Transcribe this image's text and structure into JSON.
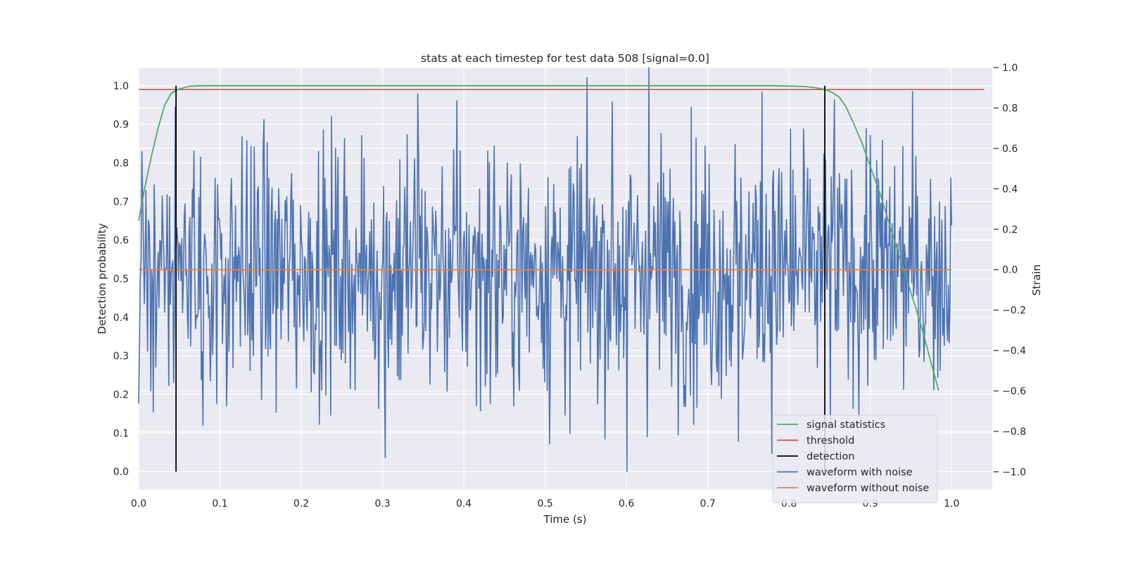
{
  "chart_data": {
    "type": "line",
    "title": "stats at each timestep for test data 508 [signal=0.0]",
    "xlabel": "Time (s)",
    "ylabel": "Detection probability",
    "ylabel_right": "Strain",
    "xlim": [
      0.0,
      1.05
    ],
    "ylim": [
      -0.047,
      1.047
    ],
    "ylim_right": [
      -1.089,
      1.0
    ],
    "x_ticks": [
      "0.0",
      "0.1",
      "0.2",
      "0.3",
      "0.4",
      "0.5",
      "0.6",
      "0.7",
      "0.8",
      "0.9",
      "1.0"
    ],
    "y_ticks": [
      "0.0",
      "0.1",
      "0.2",
      "0.3",
      "0.4",
      "0.5",
      "0.6",
      "0.7",
      "0.8",
      "0.9",
      "1.0"
    ],
    "y_right_ticks": [
      "−1.0",
      "−0.8",
      "−0.6",
      "−0.4",
      "−0.2",
      "0.0",
      "0.2",
      "0.4",
      "0.6",
      "0.8",
      "1.0"
    ],
    "grid": true,
    "legend_position": "lower-right",
    "colors": {
      "background": "#eaeaf2",
      "grid": "#ffffff",
      "signal_statistics": "#55a868",
      "threshold": "#c44e52",
      "detection": "#000000",
      "waveform_with_noise": "#4c72b0",
      "waveform_without_noise": "#dd8452"
    },
    "legend": [
      {
        "label": "signal statistics",
        "color": "#55a868"
      },
      {
        "label": "threshold",
        "color": "#c44e52"
      },
      {
        "label": "detection",
        "color": "#000000"
      },
      {
        "label": "waveform with noise",
        "color": "#4c72b0"
      },
      {
        "label": "waveform without noise",
        "color": "#dd8452"
      }
    ],
    "series": [
      {
        "name": "signal statistics",
        "axis": "left",
        "x": [
          0.0,
          0.008,
          0.016,
          0.024,
          0.032,
          0.04,
          0.048,
          0.056,
          0.064,
          0.08,
          0.12,
          0.3,
          0.5,
          0.7,
          0.78,
          0.8,
          0.82,
          0.835,
          0.845,
          0.855,
          0.862,
          0.87,
          0.88,
          0.89,
          0.9,
          0.912,
          0.925,
          0.94,
          0.955,
          0.965,
          0.975,
          0.984
        ],
        "y": [
          0.65,
          0.74,
          0.82,
          0.89,
          0.95,
          0.98,
          0.99,
          0.995,
          0.999,
          1.0,
          1.0,
          1.0,
          1.0,
          1.0,
          1.0,
          0.999,
          0.998,
          0.994,
          0.99,
          0.98,
          0.97,
          0.945,
          0.9,
          0.85,
          0.79,
          0.72,
          0.63,
          0.53,
          0.43,
          0.36,
          0.28,
          0.21
        ]
      },
      {
        "name": "threshold",
        "axis": "left",
        "x": [
          0.0,
          1.04
        ],
        "y": [
          0.99,
          0.99
        ]
      },
      {
        "name": "detection",
        "axis": "left",
        "segments": [
          {
            "x": 0.046,
            "y": [
              0.0,
              1.0
            ]
          },
          {
            "x": 0.844,
            "y": [
              0.0,
              1.0
            ]
          }
        ]
      },
      {
        "name": "waveform with noise",
        "axis": "right",
        "x_range": [
          0.0,
          1.0
        ],
        "points": 1000,
        "y_range": [
          -1.0,
          1.0
        ],
        "y_std": 0.32,
        "y_extremes": [
          {
            "x": 0.303,
            "y": -0.93
          },
          {
            "x": 0.601,
            "y": -1.0
          },
          {
            "x": 0.628,
            "y": 1.0
          },
          {
            "x": 0.767,
            "y": 0.88
          },
          {
            "x": 0.079,
            "y": -0.77
          },
          {
            "x": 0.738,
            "y": -0.85
          },
          {
            "x": 0.531,
            "y": -0.81
          },
          {
            "x": 0.343,
            "y": 0.87
          },
          {
            "x": 0.583,
            "y": 0.83
          },
          {
            "x": 0.856,
            "y": 0.84
          }
        ]
      },
      {
        "name": "waveform without noise",
        "axis": "right",
        "x": [
          0.0,
          1.0
        ],
        "y": [
          0.0,
          0.0
        ]
      }
    ]
  }
}
